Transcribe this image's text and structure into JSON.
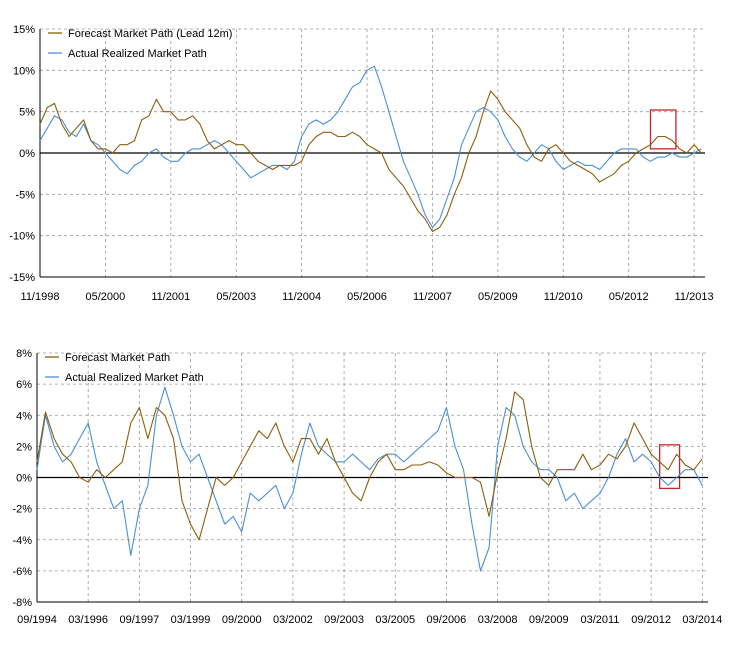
{
  "colors": {
    "forecast": "#8B5E0B",
    "actual": "#4A90D4",
    "box": "#C0282D",
    "grid": "#9a9a9a",
    "zero": "#000000"
  },
  "chart_data": [
    {
      "type": "line",
      "title": "",
      "xlabel": "",
      "ylabel": "",
      "x_range": [
        "1998-11",
        "2014-02"
      ],
      "ylim": [
        -15,
        15
      ],
      "y_ticks": [
        "15%",
        "10%",
        "5%",
        "0%",
        "-5%",
        "-10%",
        "-15%"
      ],
      "x_ticks": [
        "11/1998",
        "05/2000",
        "11/2001",
        "05/2003",
        "11/2004",
        "05/2006",
        "11/2007",
        "05/2009",
        "11/2010",
        "05/2012",
        "11/2013"
      ],
      "grid": true,
      "legend": "top-left",
      "highlight_box": {
        "x": [
          "2012-11",
          "2013-06"
        ],
        "y": [
          0.5,
          5.2
        ]
      },
      "series": [
        {
          "name": "Forecast Market Path (Lead 12m)",
          "x": [
            "1998-11",
            "1999-01",
            "1999-03",
            "1999-05",
            "1999-07",
            "1999-09",
            "1999-11",
            "2000-01",
            "2000-03",
            "2000-05",
            "2000-07",
            "2000-09",
            "2000-11",
            "2001-01",
            "2001-03",
            "2001-05",
            "2001-07",
            "2001-09",
            "2001-11",
            "2002-01",
            "2002-03",
            "2002-05",
            "2002-07",
            "2002-09",
            "2002-11",
            "2003-01",
            "2003-03",
            "2003-05",
            "2003-07",
            "2003-09",
            "2003-11",
            "2004-01",
            "2004-03",
            "2004-05",
            "2004-07",
            "2004-09",
            "2004-11",
            "2005-01",
            "2005-03",
            "2005-05",
            "2005-07",
            "2005-09",
            "2005-11",
            "2006-01",
            "2006-03",
            "2006-05",
            "2006-07",
            "2006-09",
            "2006-11",
            "2007-01",
            "2007-03",
            "2007-05",
            "2007-07",
            "2007-09",
            "2007-11",
            "2008-01",
            "2008-03",
            "2008-05",
            "2008-07",
            "2008-09",
            "2008-11",
            "2009-01",
            "2009-03",
            "2009-05",
            "2009-07",
            "2009-09",
            "2009-11",
            "2010-01",
            "2010-03",
            "2010-05",
            "2010-07",
            "2010-09",
            "2010-11",
            "2011-01",
            "2011-03",
            "2011-05",
            "2011-07",
            "2011-09",
            "2011-11",
            "2012-01",
            "2012-03",
            "2012-05",
            "2012-07",
            "2012-09",
            "2012-11",
            "2013-01",
            "2013-03",
            "2013-05",
            "2013-07",
            "2013-09",
            "2013-11",
            "2014-01"
          ],
          "values": [
            3.5,
            5.5,
            6.0,
            3.5,
            2.0,
            3.0,
            4.0,
            1.5,
            0.5,
            0.5,
            0.0,
            1.0,
            1.0,
            1.5,
            4.0,
            4.5,
            6.5,
            5.0,
            5.0,
            4.0,
            4.0,
            4.5,
            3.5,
            1.5,
            0.5,
            1.0,
            1.5,
            1.0,
            1.0,
            0.0,
            -1.0,
            -1.5,
            -2.0,
            -1.5,
            -1.5,
            -1.5,
            -1.0,
            1.0,
            2.0,
            2.5,
            2.5,
            2.0,
            2.0,
            2.5,
            2.0,
            1.0,
            0.5,
            0.0,
            -2.0,
            -3.0,
            -4.0,
            -5.5,
            -7.0,
            -8.0,
            -9.5,
            -9.0,
            -7.5,
            -5.0,
            -3.0,
            0.0,
            2.0,
            5.0,
            7.5,
            6.5,
            5.0,
            4.0,
            3.0,
            1.0,
            -0.5,
            -1.0,
            0.5,
            1.0,
            0.0,
            -1.0,
            -1.5,
            -2.0,
            -2.5,
            -3.5,
            -3.0,
            -2.5,
            -1.5,
            -1.0,
            0.0,
            0.5,
            1.0,
            2.0,
            2.0,
            1.5,
            0.5,
            0.0,
            1.0,
            0.0
          ]
        },
        {
          "name": "Actual Realized Market Path",
          "x": [
            "1998-11",
            "1999-01",
            "1999-03",
            "1999-05",
            "1999-07",
            "1999-09",
            "1999-11",
            "2000-01",
            "2000-03",
            "2000-05",
            "2000-07",
            "2000-09",
            "2000-11",
            "2001-01",
            "2001-03",
            "2001-05",
            "2001-07",
            "2001-09",
            "2001-11",
            "2002-01",
            "2002-03",
            "2002-05",
            "2002-07",
            "2002-09",
            "2002-11",
            "2003-01",
            "2003-03",
            "2003-05",
            "2003-07",
            "2003-09",
            "2003-11",
            "2004-01",
            "2004-03",
            "2004-05",
            "2004-07",
            "2004-09",
            "2004-11",
            "2005-01",
            "2005-03",
            "2005-05",
            "2005-07",
            "2005-09",
            "2005-11",
            "2006-01",
            "2006-03",
            "2006-05",
            "2006-07",
            "2006-09",
            "2006-11",
            "2007-01",
            "2007-03",
            "2007-05",
            "2007-07",
            "2007-09",
            "2007-11",
            "2008-01",
            "2008-03",
            "2008-05",
            "2008-07",
            "2008-09",
            "2008-11",
            "2009-01",
            "2009-03",
            "2009-05",
            "2009-07",
            "2009-09",
            "2009-11",
            "2010-01",
            "2010-03",
            "2010-05",
            "2010-07",
            "2010-09",
            "2010-11",
            "2011-01",
            "2011-03",
            "2011-05",
            "2011-07",
            "2011-09",
            "2011-11",
            "2012-01",
            "2012-03",
            "2012-05",
            "2012-07",
            "2012-09",
            "2012-11",
            "2013-01",
            "2013-03",
            "2013-05",
            "2013-07",
            "2013-09",
            "2013-11",
            "2014-01"
          ],
          "values": [
            1.5,
            3.0,
            4.5,
            4.0,
            2.5,
            2.0,
            3.5,
            1.5,
            1.0,
            0.0,
            -1.0,
            -2.0,
            -2.5,
            -1.5,
            -1.0,
            0.0,
            0.5,
            -0.5,
            -1.0,
            -1.0,
            0.0,
            0.5,
            0.5,
            1.0,
            1.5,
            1.0,
            0.0,
            -1.0,
            -2.0,
            -3.0,
            -2.5,
            -2.0,
            -1.5,
            -1.5,
            -2.0,
            -1.0,
            2.0,
            3.5,
            4.0,
            3.5,
            4.0,
            5.0,
            6.5,
            8.0,
            8.5,
            10.0,
            10.5,
            8.0,
            5.0,
            2.0,
            -1.0,
            -3.0,
            -5.0,
            -7.5,
            -9.0,
            -8.0,
            -5.5,
            -3.0,
            1.0,
            3.0,
            5.0,
            5.5,
            5.0,
            4.0,
            2.0,
            0.5,
            -0.5,
            -1.0,
            0.0,
            1.0,
            0.5,
            -1.0,
            -2.0,
            -1.5,
            -1.0,
            -1.5,
            -1.5,
            -2.0,
            -1.0,
            0.0,
            0.5,
            0.5,
            0.5,
            -0.5,
            -1.0,
            -0.5,
            -0.5,
            0.0,
            -0.5,
            -0.5,
            0.0,
            0.5
          ]
        }
      ]
    },
    {
      "type": "line",
      "title": "",
      "xlabel": "",
      "ylabel": "",
      "x_range": [
        "1994-09",
        "2014-05"
      ],
      "ylim": [
        -8,
        8
      ],
      "y_ticks": [
        "8%",
        "6%",
        "4%",
        "2%",
        "0%",
        "-2%",
        "-4%",
        "-6%",
        "-8%"
      ],
      "x_ticks": [
        "09/1994",
        "03/1996",
        "09/1997",
        "03/1999",
        "09/2000",
        "03/2002",
        "09/2003",
        "03/2005",
        "09/2006",
        "03/2008",
        "09/2009",
        "03/2011",
        "09/2012",
        "03/2014"
      ],
      "grid": true,
      "legend": "top-left",
      "highlight_box": {
        "x": [
          "2012-12",
          "2013-07"
        ],
        "y": [
          -0.7,
          2.1
        ]
      },
      "series": [
        {
          "name": "Forecast Market Path",
          "x": [
            "1994-09",
            "1994-12",
            "1995-03",
            "1995-06",
            "1995-09",
            "1995-12",
            "1996-03",
            "1996-06",
            "1996-09",
            "1996-12",
            "1997-03",
            "1997-06",
            "1997-09",
            "1997-12",
            "1998-03",
            "1998-06",
            "1998-09",
            "1998-12",
            "1999-03",
            "1999-06",
            "1999-09",
            "1999-12",
            "2000-03",
            "2000-06",
            "2000-09",
            "2000-12",
            "2001-03",
            "2001-06",
            "2001-09",
            "2001-12",
            "2002-03",
            "2002-06",
            "2002-09",
            "2002-12",
            "2003-03",
            "2003-06",
            "2003-09",
            "2003-12",
            "2004-03",
            "2004-06",
            "2004-09",
            "2004-12",
            "2005-03",
            "2005-06",
            "2005-09",
            "2005-12",
            "2006-03",
            "2006-06",
            "2006-09",
            "2006-12",
            "2007-03",
            "2007-06",
            "2007-09",
            "2007-12",
            "2008-03",
            "2008-06",
            "2008-09",
            "2008-12",
            "2009-03",
            "2009-06",
            "2009-09",
            "2009-12",
            "2010-03",
            "2010-06",
            "2010-09",
            "2010-12",
            "2011-03",
            "2011-06",
            "2011-09",
            "2011-12",
            "2012-03",
            "2012-06",
            "2012-09",
            "2012-12",
            "2013-03",
            "2013-06",
            "2013-09",
            "2013-12",
            "2014-03"
          ],
          "values": [
            1.0,
            4.2,
            2.5,
            1.5,
            1.0,
            0.0,
            -0.3,
            0.5,
            0.0,
            0.5,
            1.0,
            3.5,
            4.5,
            2.5,
            4.5,
            4.0,
            2.5,
            -1.5,
            -3.0,
            -4.0,
            -2.0,
            0.0,
            -0.5,
            0.0,
            1.0,
            2.0,
            3.0,
            2.5,
            3.5,
            2.0,
            1.0,
            2.5,
            2.5,
            1.5,
            2.5,
            1.0,
            0.0,
            -1.0,
            -1.5,
            0.0,
            1.0,
            1.5,
            0.5,
            0.5,
            0.8,
            0.8,
            1.0,
            0.8,
            0.3,
            0.0,
            0.0,
            0.0,
            -0.3,
            -2.5,
            0.3,
            2.5,
            5.5,
            5.0,
            2.0,
            0.0,
            -0.5,
            0.5,
            0.5,
            0.5,
            1.5,
            0.5,
            0.8,
            1.5,
            1.2,
            2.0,
            3.5,
            2.5,
            1.5,
            1.0,
            0.5,
            1.5,
            0.8,
            0.5,
            1.2
          ]
        },
        {
          "name": "Actual Realized Market Path",
          "x": [
            "1994-09",
            "1994-12",
            "1995-03",
            "1995-06",
            "1995-09",
            "1995-12",
            "1996-03",
            "1996-06",
            "1996-09",
            "1996-12",
            "1997-03",
            "1997-06",
            "1997-09",
            "1997-12",
            "1998-03",
            "1998-06",
            "1998-09",
            "1998-12",
            "1999-03",
            "1999-06",
            "1999-09",
            "1999-12",
            "2000-03",
            "2000-06",
            "2000-09",
            "2000-12",
            "2001-03",
            "2001-06",
            "2001-09",
            "2001-12",
            "2002-03",
            "2002-06",
            "2002-09",
            "2002-12",
            "2003-03",
            "2003-06",
            "2003-09",
            "2003-12",
            "2004-03",
            "2004-06",
            "2004-09",
            "2004-12",
            "2005-03",
            "2005-06",
            "2005-09",
            "2005-12",
            "2006-03",
            "2006-06",
            "2006-09",
            "2006-12",
            "2007-03",
            "2007-06",
            "2007-09",
            "2007-12",
            "2008-03",
            "2008-06",
            "2008-09",
            "2008-12",
            "2009-03",
            "2009-06",
            "2009-09",
            "2009-12",
            "2010-03",
            "2010-06",
            "2010-09",
            "2010-12",
            "2011-03",
            "2011-06",
            "2011-09",
            "2011-12",
            "2012-03",
            "2012-06",
            "2012-09",
            "2012-12",
            "2013-03",
            "2013-06",
            "2013-09",
            "2013-12",
            "2014-03"
          ],
          "values": [
            0.5,
            4.0,
            2.0,
            1.0,
            1.5,
            2.5,
            3.5,
            1.0,
            -0.5,
            -2.0,
            -1.5,
            -5.0,
            -2.0,
            -0.5,
            4.0,
            5.8,
            4.0,
            2.0,
            1.0,
            1.5,
            0.0,
            -1.5,
            -3.0,
            -2.5,
            -3.5,
            -1.0,
            -1.5,
            -1.0,
            -0.5,
            -2.0,
            -1.0,
            1.5,
            3.5,
            2.0,
            1.5,
            1.0,
            1.0,
            1.5,
            1.0,
            0.5,
            1.2,
            1.5,
            1.5,
            1.0,
            1.5,
            2.0,
            2.5,
            3.0,
            4.5,
            2.0,
            0.5,
            -3.0,
            -6.0,
            -4.5,
            2.0,
            4.5,
            4.0,
            2.0,
            1.0,
            0.5,
            0.5,
            0.0,
            -1.5,
            -1.0,
            -2.0,
            -1.5,
            -1.0,
            0.0,
            1.5,
            2.5,
            1.0,
            1.5,
            1.0,
            0.0,
            -0.5,
            0.0,
            0.5,
            0.5,
            -0.5
          ]
        }
      ]
    }
  ]
}
